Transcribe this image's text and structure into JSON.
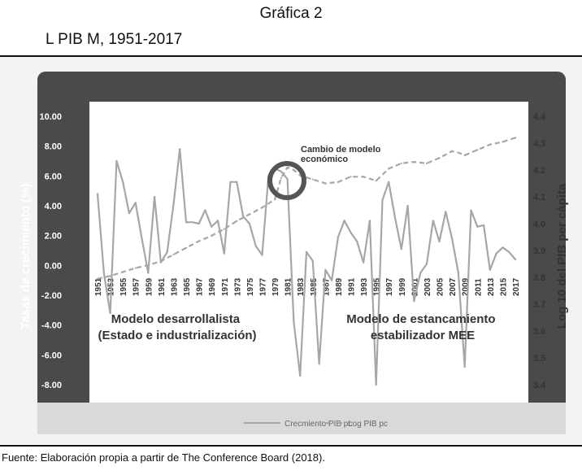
{
  "header": {
    "title": "Gráfica 2",
    "subtitle": "L    PIB    M, 1951-2017"
  },
  "source": "Fuente: Elaboración propia a partir de The Conference Board (2018).",
  "colors": {
    "dark_band": "#4a4a4a",
    "plot_bg": "#ffffff",
    "legend_bg": "#d9d9d9",
    "series": "#a6a6a6",
    "circle": "#555555"
  },
  "chart_data": {
    "type": "line",
    "ylabel": "Tasas de crecimiento (%)",
    "y2label": "Log 10 del PIB per cápita",
    "ylim": [
      -8,
      10
    ],
    "y2lim": [
      3.4,
      4.4
    ],
    "yticks": [
      "10.00",
      "8.00",
      "6.00",
      "4.00",
      "2.00",
      "0.00",
      "-2.00",
      "-4.00",
      "-6.00",
      "-8.00"
    ],
    "y2ticks": [
      "4.4",
      "4.3",
      "4.2",
      "4.1",
      "4.0",
      "3.9",
      "3.8",
      "3.7",
      "3.6",
      "3.5",
      "3.4"
    ],
    "xticks": [
      "1951",
      "1953",
      "1955",
      "1957",
      "1959",
      "1961",
      "1963",
      "1965",
      "1967",
      "1969",
      "1971",
      "1973",
      "1975",
      "1977",
      "1979",
      "1981",
      "1983",
      "1985",
      "1987",
      "1989",
      "1991",
      "1993",
      "1995",
      "1997",
      "1999",
      "2001",
      "2003",
      "2005",
      "2007",
      "2009",
      "2011",
      "2013",
      "2015",
      "2017"
    ],
    "annotations": {
      "change": "Cambio de modelo económico",
      "model1": [
        "Modelo desarrollalista",
        "(Estado e industrialización)"
      ],
      "model2": [
        "Modelo de estancamiento",
        "estabilizador MEE"
      ]
    },
    "series": [
      {
        "name": "Crecmiento PIB pc",
        "axis": "left",
        "style": "solid",
        "x": [
          1951,
          1952,
          1953,
          1954,
          1955,
          1956,
          1957,
          1958,
          1959,
          1960,
          1961,
          1962,
          1963,
          1964,
          1965,
          1966,
          1967,
          1968,
          1969,
          1970,
          1971,
          1972,
          1973,
          1974,
          1975,
          1976,
          1977,
          1978,
          1979,
          1980,
          1981,
          1982,
          1983,
          1984,
          1985,
          1986,
          1987,
          1988,
          1989,
          1990,
          1991,
          1992,
          1993,
          1994,
          1995,
          1996,
          1997,
          1998,
          1999,
          2000,
          2001,
          2002,
          2003,
          2004,
          2005,
          2006,
          2007,
          2008,
          2009,
          2010,
          2011,
          2012,
          2013,
          2014,
          2015,
          2016,
          2017
        ],
        "values": [
          4.8,
          -0.5,
          -3.2,
          7.0,
          5.6,
          3.5,
          4.2,
          1.8,
          -0.5,
          4.6,
          0.2,
          0.9,
          4.1,
          7.8,
          2.9,
          2.9,
          2.8,
          3.7,
          2.6,
          3.0,
          0.8,
          5.6,
          5.6,
          3.3,
          2.8,
          1.3,
          0.7,
          6.0,
          6.5,
          6.3,
          5.8,
          -3.8,
          -7.4,
          0.9,
          0.3,
          -6.6,
          -0.3,
          -1.0,
          1.9,
          3.0,
          2.2,
          1.6,
          0.2,
          3.0,
          -8.0,
          4.4,
          5.6,
          3.2,
          1.1,
          4.0,
          -2.4,
          -0.5,
          0.1,
          3.0,
          1.6,
          3.6,
          1.8,
          -0.5,
          -6.8,
          3.7,
          2.6,
          2.7,
          -0.3,
          0.8,
          1.2,
          0.9,
          0.4
        ]
      },
      {
        "name": "Log PIB pc",
        "axis": "right",
        "style": "dashed",
        "x": [
          1951,
          1953,
          1955,
          1957,
          1959,
          1961,
          1963,
          1965,
          1967,
          1969,
          1971,
          1973,
          1975,
          1977,
          1979,
          1980,
          1981,
          1982,
          1983,
          1985,
          1987,
          1989,
          1991,
          1993,
          1995,
          1997,
          1999,
          2001,
          2003,
          2005,
          2007,
          2008,
          2009,
          2011,
          2013,
          2015,
          2017
        ],
        "values": [
          3.795,
          3.805,
          3.82,
          3.835,
          3.845,
          3.86,
          3.885,
          3.91,
          3.935,
          3.955,
          3.98,
          4.01,
          4.035,
          4.06,
          4.09,
          4.17,
          4.21,
          4.2,
          4.18,
          4.165,
          4.15,
          4.155,
          4.175,
          4.175,
          4.16,
          4.205,
          4.225,
          4.23,
          4.225,
          4.245,
          4.27,
          4.265,
          4.255,
          4.275,
          4.295,
          4.305,
          4.32
        ]
      }
    ]
  }
}
